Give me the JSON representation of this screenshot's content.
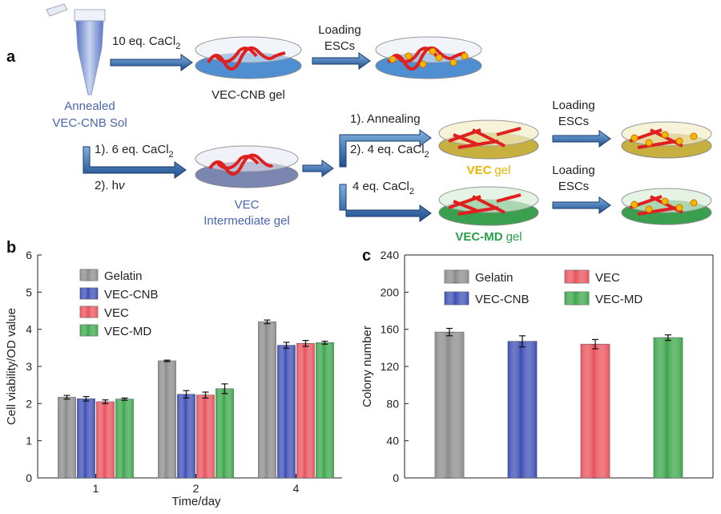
{
  "diagram": {
    "panel_labels": [
      "a",
      "b",
      "c"
    ],
    "tube_label": [
      "Annealed",
      "VEC-CNB Sol"
    ],
    "step1": {
      "text": "10 eq. CaCl",
      "sub": "2"
    },
    "loading": [
      [
        "Loading",
        "ESCs"
      ],
      [
        "Loading",
        "ESCs"
      ],
      [
        "Loading",
        "ESCs"
      ]
    ],
    "cnb_gel": "VEC-CNB gel",
    "step2a": {
      "text": "1). 6 eq. CaCl",
      "sub": "2"
    },
    "step2b": {
      "text": "2). h",
      "sym": "ν"
    },
    "intermediate": [
      "VEC",
      "Intermediate gel"
    ],
    "anneal": "1). Annealing",
    "step3": {
      "text": "2). 4 eq. CaCl",
      "sub": "2"
    },
    "step4": {
      "text": "4 eq. CaCl",
      "sub": "2"
    },
    "vec_gel": {
      "bold": "VEC",
      "rest": "gel"
    },
    "md_gel": {
      "bold": "VEC-MD",
      "rest": "gel"
    }
  },
  "chart_data": [
    {
      "type": "bar",
      "xlabel": "Time/day",
      "ylabel": "Cell viability/OD value",
      "categories": [
        "1",
        "2",
        "4"
      ],
      "ylim": [
        0,
        6
      ],
      "yticks": [
        0,
        1,
        2,
        3,
        4,
        5,
        6
      ],
      "legend": "upper left",
      "legend_columns": 1,
      "series": [
        {
          "name": "Gelatin",
          "color": "#8a8a8a",
          "values": [
            2.17,
            3.15,
            4.2
          ],
          "errors": [
            0.05,
            0.02,
            0.05
          ]
        },
        {
          "name": "VEC-CNB",
          "color": "#3b4cb4",
          "values": [
            2.13,
            2.25,
            3.57
          ],
          "errors": [
            0.06,
            0.1,
            0.08
          ]
        },
        {
          "name": "VEC",
          "color": "#e8505a",
          "values": [
            2.05,
            2.23,
            3.62
          ],
          "errors": [
            0.05,
            0.08,
            0.08
          ]
        },
        {
          "name": "VEC-MD",
          "color": "#3aa54a",
          "values": [
            2.12,
            2.4,
            3.64
          ],
          "errors": [
            0.03,
            0.13,
            0.04
          ]
        }
      ]
    },
    {
      "type": "bar",
      "ylabel": "Colony number",
      "categories": [
        null
      ],
      "ylim": [
        0,
        240
      ],
      "yticks": [
        0,
        40,
        80,
        120,
        160,
        200,
        240
      ],
      "legend": "upper left",
      "legend_columns": 2,
      "series": [
        {
          "name": "Gelatin",
          "color": "#8a8a8a",
          "values": [
            157
          ],
          "errors": [
            4
          ]
        },
        {
          "name": "VEC-CNB",
          "color": "#3b4cb4",
          "values": [
            147
          ],
          "errors": [
            6
          ]
        },
        {
          "name": "VEC",
          "color": "#e8505a",
          "values": [
            144
          ],
          "errors": [
            5
          ]
        },
        {
          "name": "VEC-MD",
          "color": "#3aa54a",
          "values": [
            151
          ],
          "errors": [
            3
          ]
        }
      ]
    }
  ]
}
